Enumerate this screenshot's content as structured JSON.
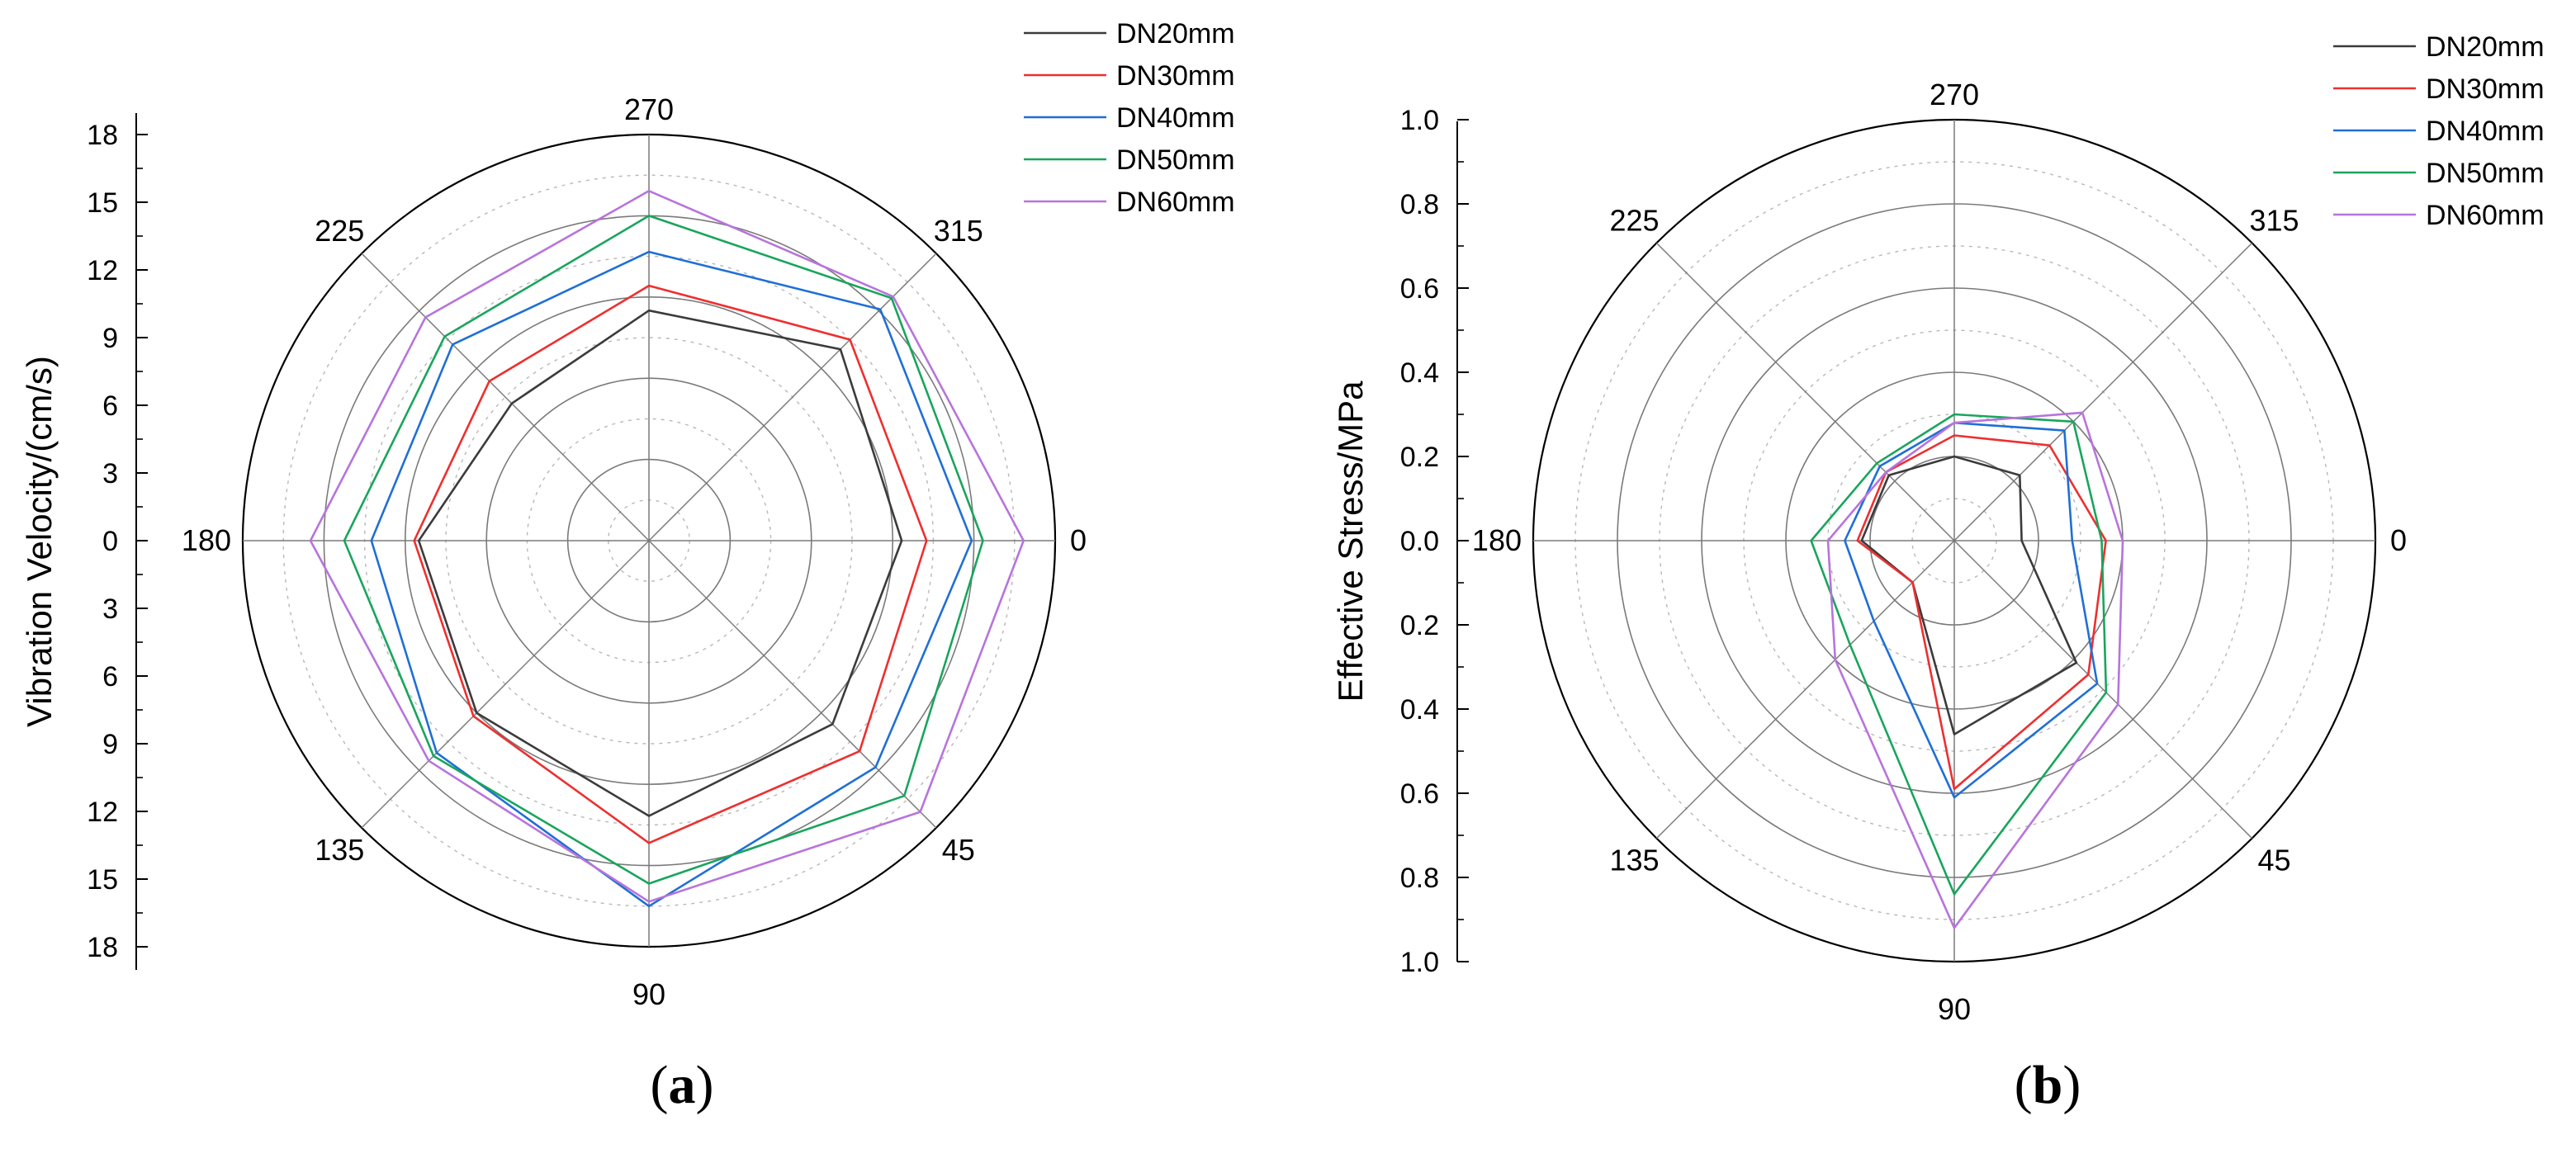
{
  "chart_data": [
    {
      "type": "polar-line",
      "panel_label": "a",
      "ylabel": "Vibration Velocity/(cm/s)",
      "rmax": 18,
      "angle_labels": [
        "0",
        "45",
        "90",
        "135",
        "180",
        "225",
        "270",
        "315"
      ],
      "radial_ticks": [
        "18",
        "15",
        "12",
        "9",
        "6",
        "3",
        "0",
        "3",
        "6",
        "9",
        "12",
        "15",
        "18"
      ],
      "grid": true,
      "legend_position": "top-right",
      "angles_deg": [
        0,
        45,
        90,
        135,
        180,
        225,
        270,
        315
      ],
      "series": [
        {
          "name": "DN20mm",
          "color": "#3b3b3b",
          "values": [
            11.2,
            11.5,
            12.2,
            10.8,
            10.2,
            8.6,
            10.2,
            12.0
          ]
        },
        {
          "name": "DN30mm",
          "color": "#ee2f2f",
          "values": [
            12.3,
            13.2,
            13.4,
            11.0,
            10.4,
            10.0,
            11.3,
            12.6
          ]
        },
        {
          "name": "DN40mm",
          "color": "#1f6fd6",
          "values": [
            14.3,
            14.2,
            16.2,
            13.3,
            12.3,
            12.3,
            12.8,
            14.5
          ]
        },
        {
          "name": "DN50mm",
          "color": "#19a55c",
          "values": [
            14.8,
            16.0,
            15.2,
            13.5,
            13.5,
            12.8,
            14.4,
            15.2
          ]
        },
        {
          "name": "DN60mm",
          "color": "#b774dc",
          "values": [
            16.6,
            17.0,
            16.0,
            13.8,
            15.0,
            14.0,
            15.5,
            15.3
          ]
        }
      ]
    },
    {
      "type": "polar-line",
      "panel_label": "b",
      "ylabel": "Effective Stress/MPa",
      "rmax": 1.0,
      "angle_labels": [
        "0",
        "45",
        "90",
        "135",
        "180",
        "225",
        "270",
        "315"
      ],
      "radial_ticks": [
        "1.0",
        "0.8",
        "0.6",
        "0.4",
        "0.2",
        "0.0",
        "0.2",
        "0.4",
        "0.6",
        "0.8",
        "1.0"
      ],
      "grid": true,
      "legend_position": "top-right",
      "angles_deg": [
        0,
        45,
        90,
        135,
        180,
        225,
        270,
        315
      ],
      "series": [
        {
          "name": "DN20mm",
          "color": "#3b3b3b",
          "values": [
            0.16,
            0.41,
            0.46,
            0.14,
            0.22,
            0.22,
            0.2,
            0.22
          ]
        },
        {
          "name": "DN30mm",
          "color": "#ee2f2f",
          "values": [
            0.36,
            0.45,
            0.59,
            0.14,
            0.23,
            0.23,
            0.25,
            0.32
          ]
        },
        {
          "name": "DN40mm",
          "color": "#1f6fd6",
          "values": [
            0.28,
            0.48,
            0.61,
            0.27,
            0.26,
            0.25,
            0.28,
            0.37
          ]
        },
        {
          "name": "DN50mm",
          "color": "#19a55c",
          "values": [
            0.35,
            0.51,
            0.84,
            0.35,
            0.34,
            0.26,
            0.3,
            0.4
          ]
        },
        {
          "name": "DN60mm",
          "color": "#b774dc",
          "values": [
            0.4,
            0.55,
            0.92,
            0.4,
            0.3,
            0.23,
            0.28,
            0.43
          ]
        }
      ]
    }
  ]
}
